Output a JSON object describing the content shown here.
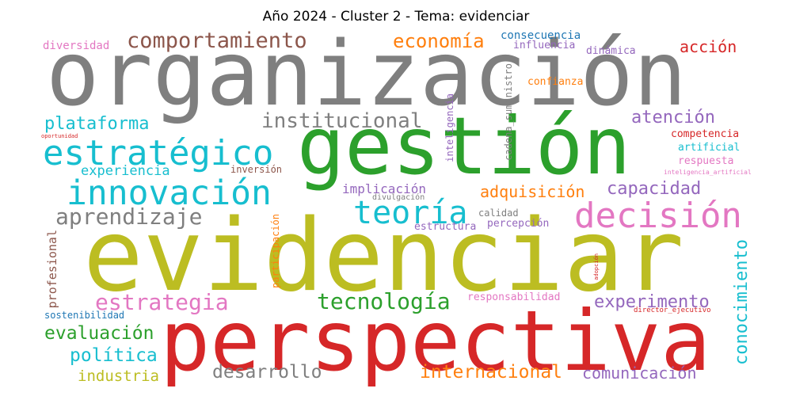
{
  "title": "Año 2024 - Cluster 2 - Tema: evidenciar",
  "palette": {
    "gray": "#7f7f7f",
    "green": "#2ca02c",
    "olive": "#bcbd22",
    "red": "#d62728",
    "cyan": "#17becf",
    "pink": "#e377c2",
    "purple": "#9467bd",
    "brown": "#8c564b",
    "orange": "#ff7f0e",
    "blue": "#1f77b4"
  },
  "words": [
    {
      "text": "organización",
      "color": "#7f7f7f"
    },
    {
      "text": "gestión",
      "color": "#2ca02c"
    },
    {
      "text": "evidenciar",
      "color": "#bcbd22"
    },
    {
      "text": "perspectiva",
      "color": "#d62728"
    },
    {
      "text": "estratégico",
      "color": "#17becf"
    },
    {
      "text": "innovación",
      "color": "#17becf"
    },
    {
      "text": "decisión",
      "color": "#e377c2"
    },
    {
      "text": "teoría",
      "color": "#17becf"
    },
    {
      "text": "comportamiento",
      "color": "#8c564b"
    },
    {
      "text": "institucional",
      "color": "#7f7f7f"
    },
    {
      "text": "aprendizaje",
      "color": "#7f7f7f"
    },
    {
      "text": "tecnología",
      "color": "#2ca02c"
    },
    {
      "text": "estrategia",
      "color": "#e377c2"
    },
    {
      "text": "economía",
      "color": "#ff7f0e"
    },
    {
      "text": "plataforma",
      "color": "#17becf"
    },
    {
      "text": "atención",
      "color": "#9467bd"
    },
    {
      "text": "capacidad",
      "color": "#9467bd"
    },
    {
      "text": "experimento",
      "color": "#9467bd"
    },
    {
      "text": "evaluación",
      "color": "#2ca02c"
    },
    {
      "text": "política",
      "color": "#17becf"
    },
    {
      "text": "adquisición",
      "color": "#ff7f0e"
    },
    {
      "text": "internacional",
      "color": "#ff7f0e"
    },
    {
      "text": "desarrollo",
      "color": "#7f7f7f"
    },
    {
      "text": "comunicación",
      "color": "#9467bd"
    },
    {
      "text": "conocimiento",
      "color": "#17becf"
    },
    {
      "text": "industria",
      "color": "#bcbd22"
    },
    {
      "text": "acción",
      "color": "#d62728"
    },
    {
      "text": "experiencia",
      "color": "#17becf"
    },
    {
      "text": "implicación",
      "color": "#9467bd"
    },
    {
      "text": "diversidad",
      "color": "#e377c2"
    },
    {
      "text": "consecuencia",
      "color": "#1f77b4"
    },
    {
      "text": "influencia",
      "color": "#9467bd"
    },
    {
      "text": "dinámica",
      "color": "#9467bd"
    },
    {
      "text": "confianza",
      "color": "#ff7f0e"
    },
    {
      "text": "competencia",
      "color": "#d62728"
    },
    {
      "text": "artificial",
      "color": "#17becf"
    },
    {
      "text": "respuesta",
      "color": "#e377c2"
    },
    {
      "text": "inteligencia_artificial",
      "color": "#e377c2"
    },
    {
      "text": "oportunidad",
      "color": "#d62728"
    },
    {
      "text": "inversión",
      "color": "#8c564b"
    },
    {
      "text": "divulgación",
      "color": "#7f7f7f"
    },
    {
      "text": "calidad",
      "color": "#7f7f7f"
    },
    {
      "text": "estructura",
      "color": "#9467bd"
    },
    {
      "text": "percepción",
      "color": "#9467bd"
    },
    {
      "text": "responsabilidad",
      "color": "#e377c2"
    },
    {
      "text": "director_ejecutivo",
      "color": "#d62728"
    },
    {
      "text": "sostenibilidad",
      "color": "#1f77b4"
    },
    {
      "text": "profesional",
      "color": "#8c564b"
    },
    {
      "text": "participación",
      "color": "#ff7f0e"
    },
    {
      "text": "inteligencia",
      "color": "#9467bd"
    },
    {
      "text": "cadena_suministro",
      "color": "#7f7f7f"
    },
    {
      "text": "adopción",
      "color": "#d62728"
    }
  ]
}
